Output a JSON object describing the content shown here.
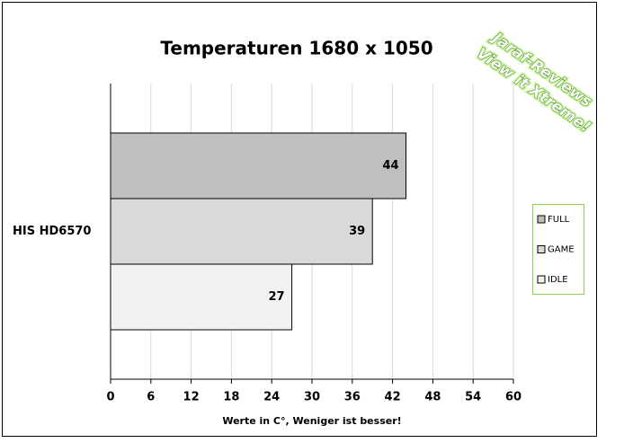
{
  "chart_data": {
    "type": "hbar",
    "title": "Temperaturen 1680 x 1050",
    "xlabel": "Werte in C°, Weniger ist besser!",
    "categories": [
      "HIS HD6570"
    ],
    "series": [
      {
        "name": "FULL",
        "color": "#bfbfbf",
        "values": [
          44
        ]
      },
      {
        "name": "GAME",
        "color": "#d9d9d9",
        "values": [
          39
        ]
      },
      {
        "name": "IDLE",
        "color": "#f2f2f2",
        "values": [
          27
        ]
      }
    ],
    "xlim": [
      0,
      60
    ],
    "xticks": [
      0,
      6,
      12,
      18,
      24,
      30,
      36,
      42,
      48,
      54,
      60
    ],
    "grid": true,
    "legend": "right",
    "watermark": [
      "Jaraf-Reviews",
      "View it Xtreme!"
    ]
  }
}
